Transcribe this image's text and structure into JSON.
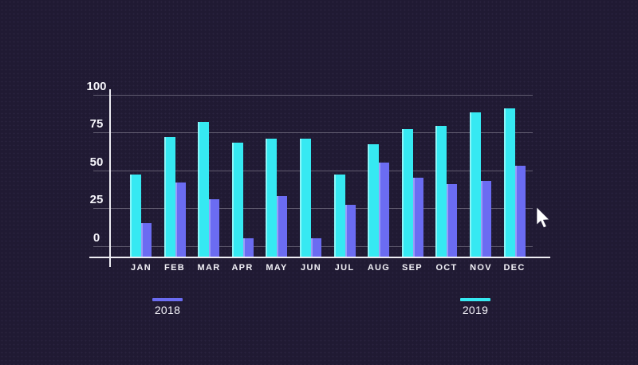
{
  "app": {
    "background_color": "#201a33",
    "axis_color": "#edecf2",
    "gridline_color": "rgba(235,233,244,0.32)",
    "text_color": "#f5f4fa"
  },
  "chart_data": {
    "type": "bar",
    "title": "",
    "xlabel": "",
    "ylabel": "",
    "categories": [
      "JAN",
      "FEB",
      "MAR",
      "APR",
      "MAY",
      "JUN",
      "JUL",
      "AUG",
      "SEP",
      "OCT",
      "NOV",
      "DEC"
    ],
    "series": [
      {
        "name": "2019",
        "color": "#36e9f2",
        "edge_highlight": "#8df6f8",
        "values": [
          47,
          72,
          82,
          68,
          71,
          71,
          47,
          67,
          77,
          79,
          88,
          91
        ]
      },
      {
        "name": "2018",
        "color": "#6b6cf2",
        "edge_highlight": "#9b9df8",
        "values": [
          15,
          42,
          31,
          5,
          33,
          5,
          27,
          55,
          45,
          41,
          43,
          53
        ]
      }
    ],
    "group_order_left_to_right": [
      "2019",
      "2018"
    ],
    "ylim": [
      0,
      100
    ],
    "yticks": [
      0,
      25,
      50,
      75,
      100
    ],
    "grid": "horizontal",
    "legend_position": "below-chart"
  },
  "legend": {
    "items": [
      {
        "label": "2018",
        "color": "#6b6cf2"
      },
      {
        "label": "2019",
        "color": "#36e9f2"
      }
    ]
  },
  "icons": {
    "cursor": "arrow-pointer-icon"
  }
}
